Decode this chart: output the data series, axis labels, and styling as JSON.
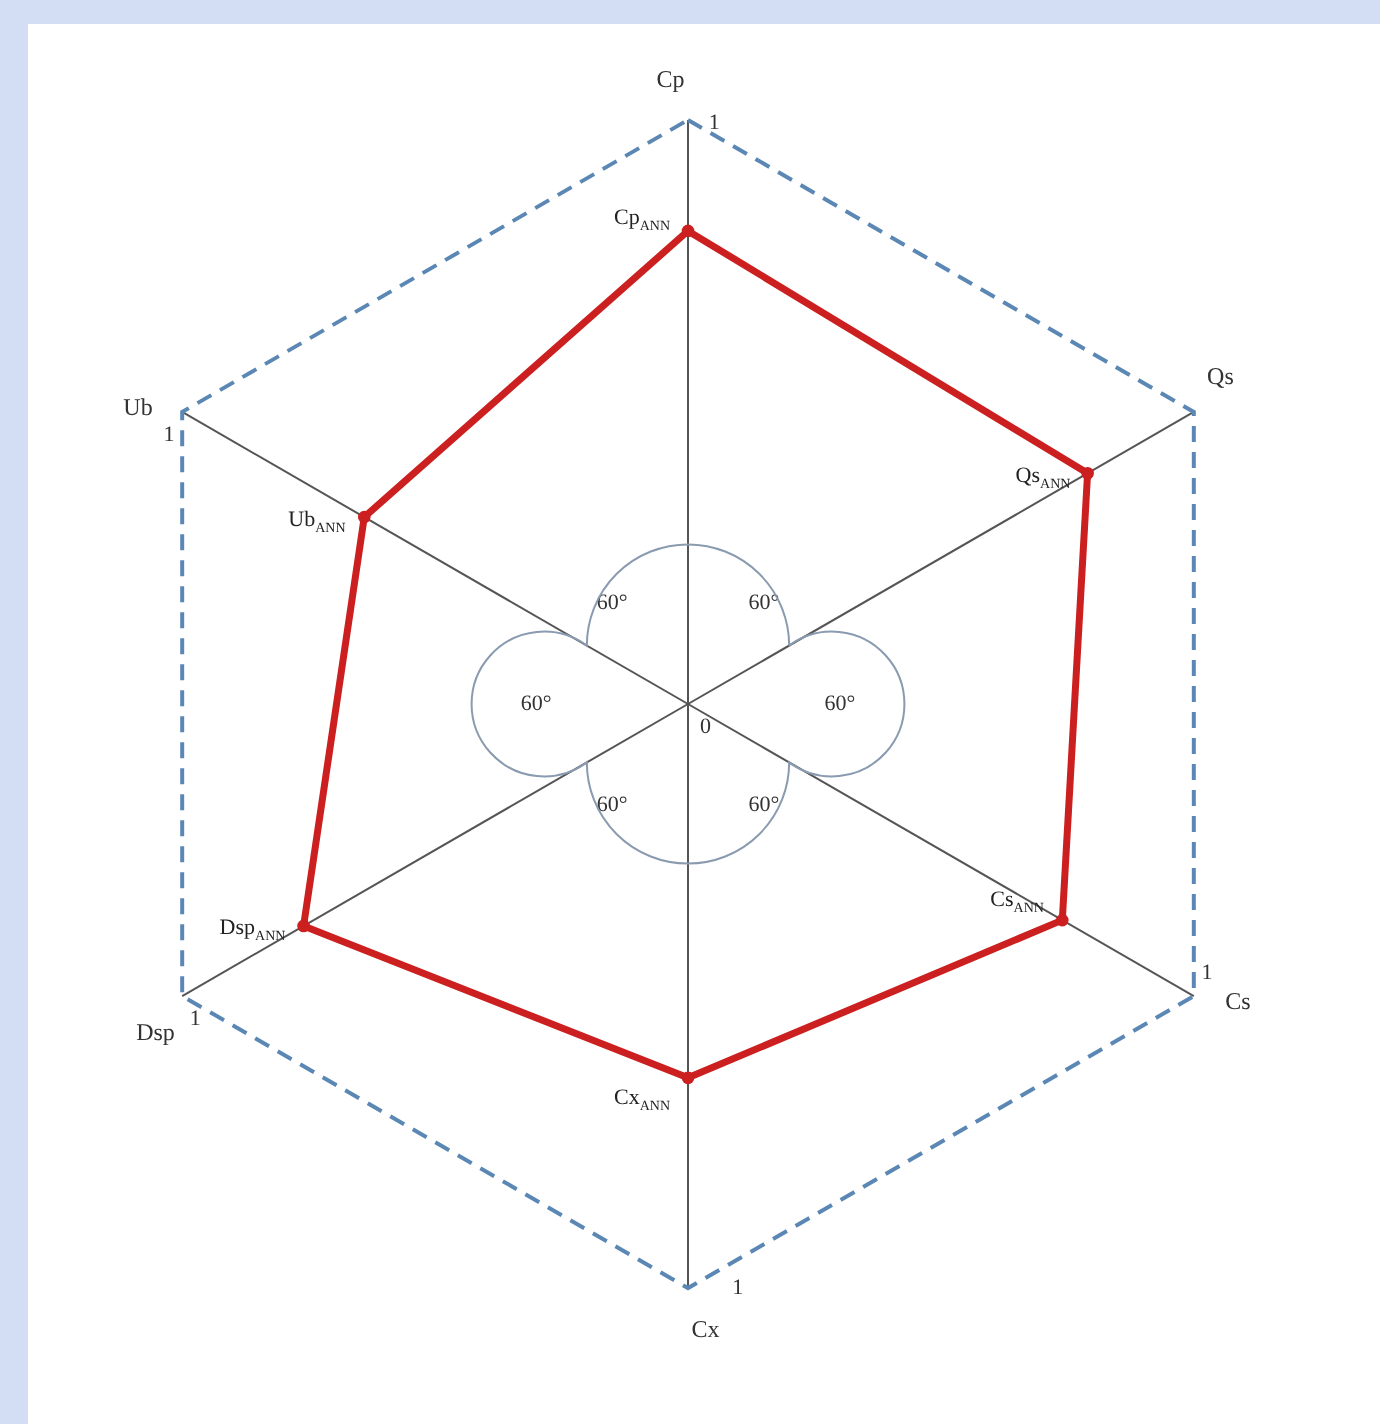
{
  "chart_data": {
    "type": "radar",
    "categories": [
      "Cp",
      "Qs",
      "Cs",
      "Cx",
      "Dsp",
      "Ub"
    ],
    "ylim": [
      0,
      1
    ],
    "yticks": [
      0,
      1
    ],
    "grid": true,
    "marker": "circle",
    "series": [
      {
        "color": "#cc1f1f",
        "values": [
          0.81,
          0.79,
          0.74,
          0.64,
          0.76,
          0.64
        ]
      }
    ],
    "annotations": [
      "60°",
      "60°",
      "60°",
      "60°",
      "60°",
      "60°",
      {
        "text": "Cp$_{ANN}$",
        "x": "Cp"
      },
      {
        "text": "Qs$_{ANN}$",
        "x": "Qs"
      },
      {
        "text": "Cs$_{ANN}$",
        "x": "Cs"
      },
      {
        "text": "Cx$_{ANN}$",
        "x": "Cx"
      },
      {
        "text": "Dsp$_{ANN}$",
        "x": "Dsp"
      },
      {
        "text": "Ub$_{ANN}$",
        "x": "Ub"
      },
      "1",
      "1",
      "1",
      "1"
    ]
  }
}
